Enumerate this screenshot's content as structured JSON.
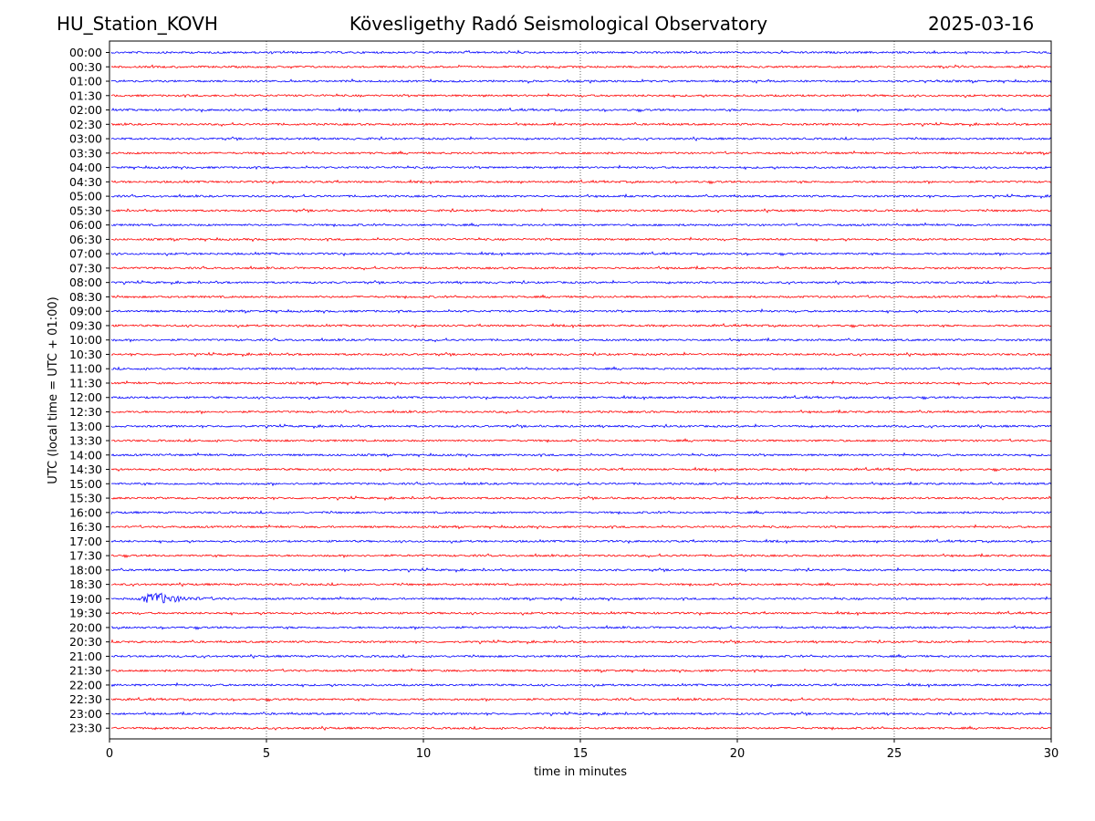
{
  "header": {
    "station": "HU_Station_KOVH",
    "title": "Kövesligethy Radó Seismological Observatory",
    "date": "2025-03-16"
  },
  "chart_data": {
    "type": "line",
    "title": "Kövesligethy Radó Seismological Observatory",
    "xlabel": "time in minutes",
    "ylabel": "UTC (local time = UTC + 01:00)",
    "xlim": [
      0,
      30
    ],
    "x_ticks": [
      0,
      5,
      10,
      15,
      20,
      25,
      30
    ],
    "grid": "vertical dotted at x ticks",
    "colors": [
      "#0000ff",
      "#ff0000"
    ],
    "rows": [
      "00:00",
      "00:30",
      "01:00",
      "01:30",
      "02:00",
      "02:30",
      "03:00",
      "03:30",
      "04:00",
      "04:30",
      "05:00",
      "05:30",
      "06:00",
      "06:30",
      "07:00",
      "07:30",
      "08:00",
      "08:30",
      "09:00",
      "09:30",
      "10:00",
      "10:30",
      "11:00",
      "11:30",
      "12:00",
      "12:30",
      "13:00",
      "13:30",
      "14:00",
      "14:30",
      "15:00",
      "15:30",
      "16:00",
      "16:30",
      "17:00",
      "17:30",
      "18:00",
      "18:30",
      "19:00",
      "19:30",
      "20:00",
      "20:30",
      "21:00",
      "21:30",
      "22:00",
      "22:30",
      "23:00",
      "23:30"
    ],
    "events": [
      {
        "row": "19:00",
        "start_min": 0.8,
        "peak_min": 1.5,
        "end_min": 4.0
      }
    ]
  }
}
